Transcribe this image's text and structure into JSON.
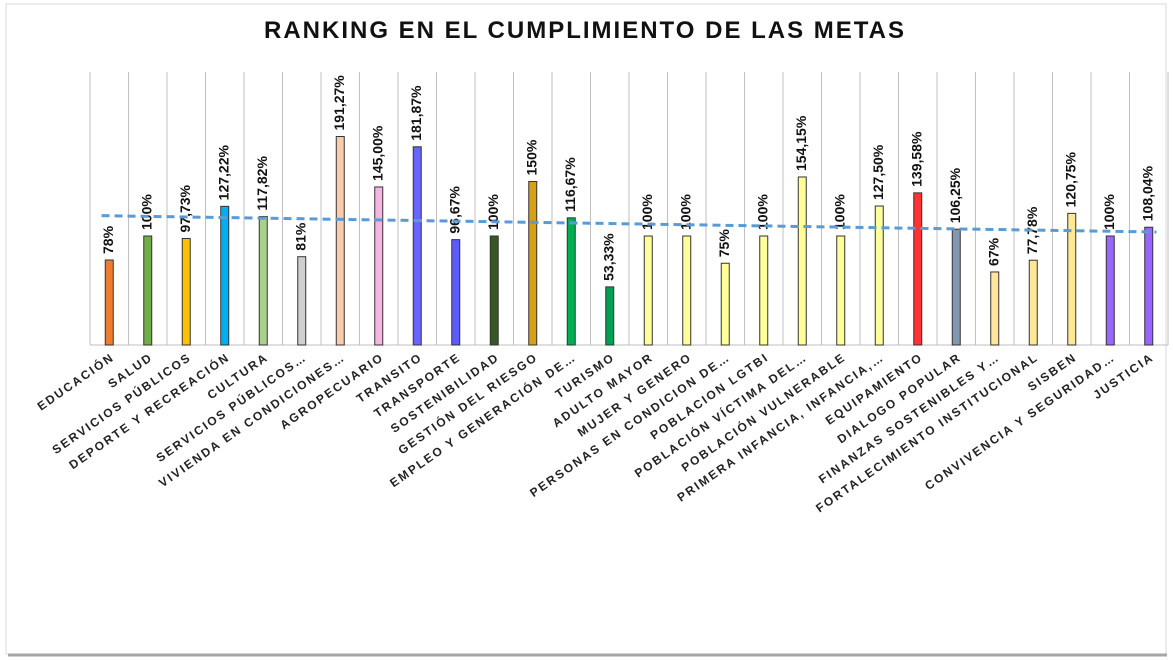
{
  "chart_data": {
    "type": "bar",
    "title": "RANKING EN EL CUMPLIMIENTO DE LAS METAS",
    "categories": [
      "EDUCACIÓN",
      "SALUD",
      "SERVICIOS PÚBLICOS",
      "DEPORTE Y RECREACIÓN",
      "CULTURA",
      "SERVICIOS PÚBLICOS…",
      "VIVIENDA EN CONDICIONES…",
      "AGROPECUARIO",
      "TRANSITO",
      "TRANSPORTE",
      "SOSTENIBILIDAD",
      "GESTIÓN DEL RIESGO",
      "EMPLEO Y GENERACIÓN DE…",
      "TURISMO",
      "ADULTO MAYOR",
      "MUJER Y GENERO",
      "PERSONAS EN CONDICION DE…",
      "POBLACION LGTBI",
      "POBLACIÓN VÍCTIMA DEL…",
      "POBLACIÓN VULNERABLE",
      "PRIMERA INFANCIA, INFANCIA,…",
      "EQUIPAMIENTO",
      "DIALOGO POPULAR",
      "FINANZAS SOSTENIBLES Y…",
      "FORTALECIMIENTO INSTITUCIONAL",
      "SISBEN",
      "CONVIVENCIA Y SEGURIDAD…",
      "JUSTICIA"
    ],
    "values": [
      78,
      100,
      97.73,
      127.22,
      117.82,
      81,
      191.27,
      145.0,
      181.87,
      96.67,
      100,
      150,
      116.67,
      53.33,
      100,
      100,
      75,
      100,
      154.15,
      100,
      127.5,
      139.58,
      106.25,
      67,
      77.78,
      120.75,
      100,
      108.04
    ],
    "value_labels": [
      "78%",
      "100%",
      "97,73%",
      "127,22%",
      "117,82%",
      "81%",
      "191,27%",
      "145,00%",
      "181,87%",
      "96,67%",
      "100%",
      "150%",
      "116,67%",
      "53,33%",
      "100%",
      "100%",
      "75%",
      "100%",
      "154,15%",
      "100%",
      "127,50%",
      "139,58%",
      "106,25%",
      "67%",
      "77,78%",
      "120,75%",
      "100%",
      "108,04%"
    ],
    "colors": [
      "#ED7D31",
      "#70AD47",
      "#FFC000",
      "#00B0F0",
      "#A9D18E",
      "#D0CECE",
      "#F8CBAD",
      "#F4B6E0",
      "#6666FF",
      "#5B5BFF",
      "#375623",
      "#D4A017",
      "#00B050",
      "#00A050",
      "#FFFF99",
      "#FFFF99",
      "#FFFF99",
      "#FFFF99",
      "#FFFF99",
      "#FFFF99",
      "#FFFF99",
      "#FF3333",
      "#8497B0",
      "#FFE699",
      "#FFE699",
      "#FFE699",
      "#9966FF",
      "#9966FF"
    ],
    "trendline": {
      "type": "linear",
      "color": "#5B9BD5"
    },
    "grid": true
  }
}
